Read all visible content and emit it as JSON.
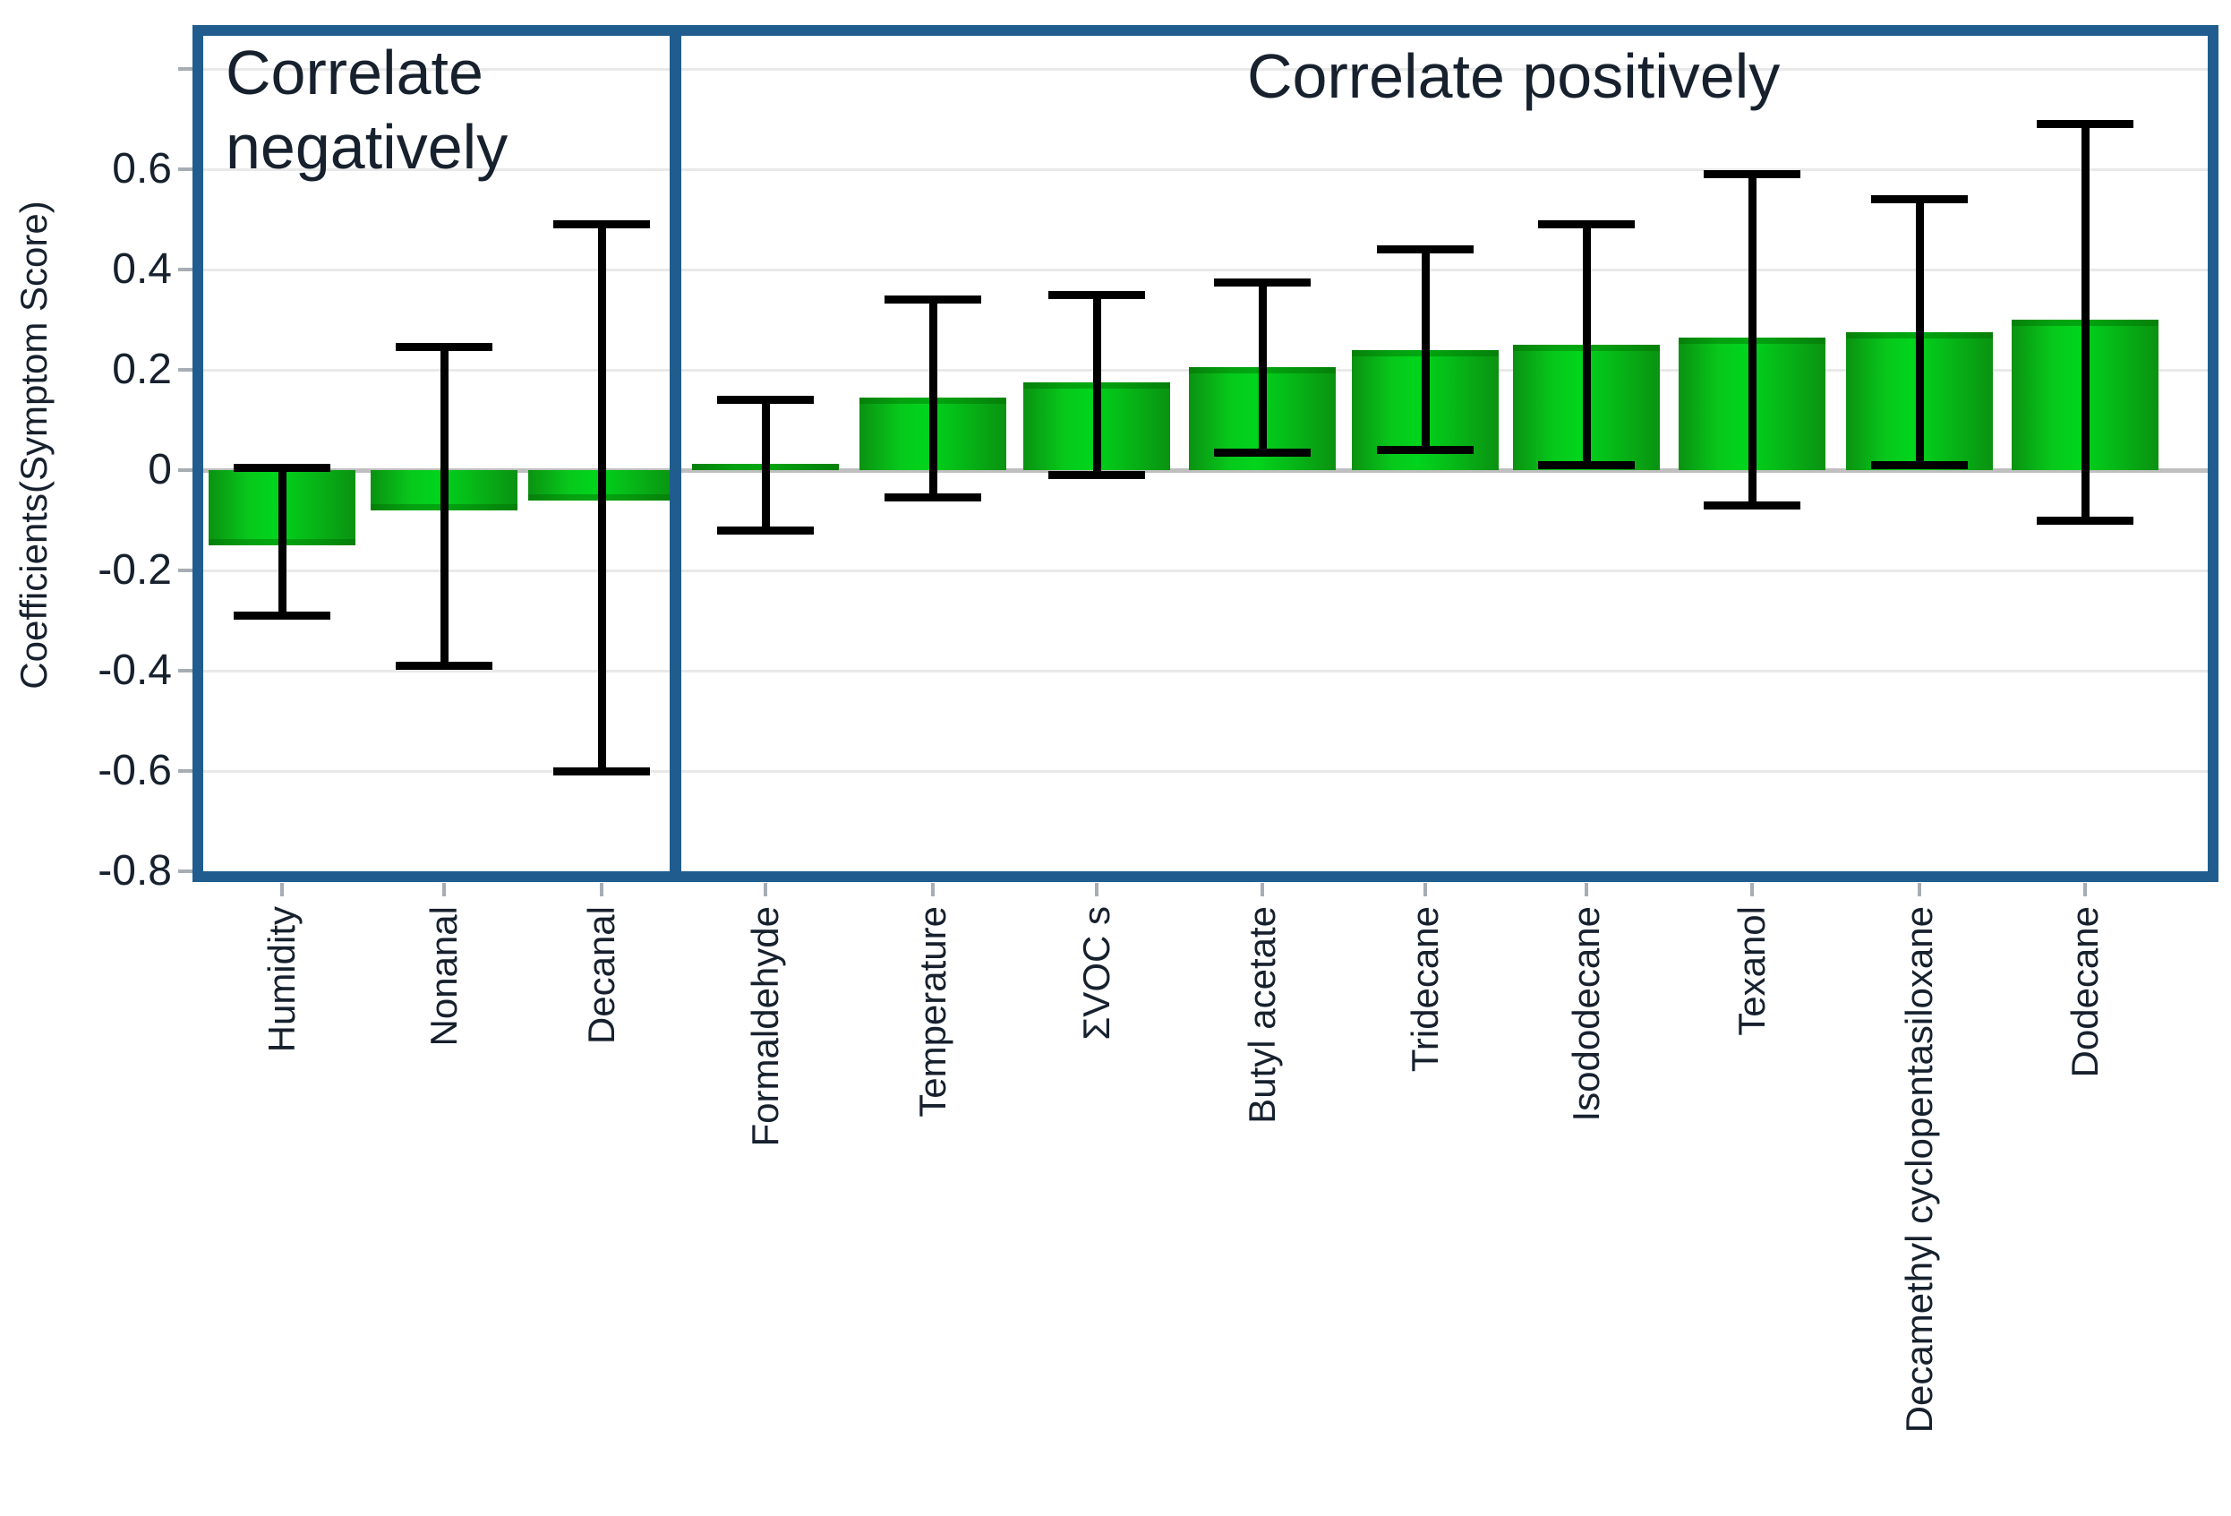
{
  "chart_data": {
    "type": "bar",
    "title": "",
    "ylabel": "Coefficients(Symptom Score)",
    "group_labels": [
      "Correlate negatively",
      "Correlate positively"
    ],
    "categories": [
      "Humidity",
      "Nonanal",
      "Decanal",
      "Formaldehyde",
      "Temperature",
      "ΣVOC s",
      "Butyl acetate",
      "Tridecane",
      "Isododecane",
      "Texanol",
      "Decamethyl cyclopentasiloxane",
      "Dodecane"
    ],
    "series": [
      {
        "name": "Coefficients(Symptom Score)",
        "values": [
          -0.15,
          -0.08,
          -0.06,
          0.012,
          0.145,
          0.175,
          0.205,
          0.24,
          0.25,
          0.265,
          0.275,
          0.3
        ]
      }
    ],
    "error_low": [
      -0.29,
      -0.39,
      -0.6,
      -0.12,
      -0.055,
      -0.01,
      0.035,
      0.04,
      0.01,
      -0.07,
      0.01,
      -0.1
    ],
    "error_high": [
      0.005,
      0.245,
      0.49,
      0.14,
      0.34,
      0.35,
      0.375,
      0.44,
      0.49,
      0.59,
      0.54,
      0.69
    ],
    "groups": [
      {
        "label": "Correlate negatively",
        "categories": [
          "Humidity",
          "Nonanal",
          "Decanal"
        ]
      },
      {
        "label": "Correlate positively",
        "categories": [
          "Formaldehyde",
          "Temperature",
          "ΣVOC s",
          "Butyl acetate",
          "Tridecane",
          "Isododecane",
          "Texanol",
          "Decamethyl cyclopentasiloxane",
          "Dodecane"
        ]
      }
    ],
    "ylim": [
      -0.8,
      0.865
    ],
    "yticks": [
      0.8,
      0.6,
      0.4,
      0.2,
      0,
      -0.2,
      -0.4,
      -0.6,
      -0.8
    ],
    "ytick_labels": [
      "",
      "0.6",
      "0.4",
      "0.2",
      "0",
      "-0.2",
      "-0.4",
      "-0.6",
      "-0.8"
    ],
    "grid": true,
    "legend": "none",
    "colors": {
      "bar": "#00d41c",
      "bar_edge": "#0a9211",
      "error": "#000000",
      "frame": "#205d8e",
      "grid": "#e9e9e9",
      "zero_line": "#bfbfbf",
      "text": "#17212e"
    }
  }
}
